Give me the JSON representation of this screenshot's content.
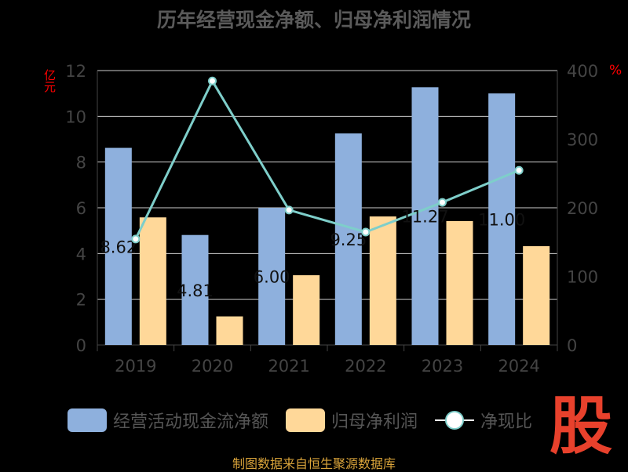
{
  "title": "历年经营现金净额、归母净利润情况",
  "source": "制图数据来自恒生聚源数据库",
  "logo_text": "股",
  "chart_data": {
    "type": "bar",
    "categories": [
      "2019",
      "2020",
      "2021",
      "2022",
      "2023",
      "2024"
    ],
    "series": [
      {
        "name": "经营活动现金流净额",
        "type": "bar",
        "axis": "left",
        "color": "#8eb0dd",
        "values": [
          8.62,
          4.81,
          6.0,
          9.25,
          11.27,
          11.0
        ]
      },
      {
        "name": "归母净利润",
        "type": "bar",
        "axis": "left",
        "color": "#ffd899",
        "values": [
          5.58,
          1.25,
          3.05,
          5.62,
          5.42,
          4.32
        ]
      },
      {
        "name": "净现比",
        "type": "line",
        "axis": "right",
        "color": "#7ececa",
        "values": [
          154.5,
          384.8,
          196.7,
          164.6,
          207.9,
          254.6
        ]
      }
    ],
    "bar_labels": [
      "8.62",
      "4.81",
      "6.00",
      "9.25",
      "11.27",
      "11.00"
    ],
    "y_left": {
      "label": "亿元",
      "ylim": [
        0,
        12
      ],
      "ticks": [
        0,
        2,
        4,
        6,
        8,
        10,
        12
      ]
    },
    "y_right": {
      "label": "%",
      "ylim": [
        0,
        400
      ],
      "ticks": [
        0,
        100,
        200,
        300,
        400
      ]
    },
    "grid": true,
    "legend": "bottom",
    "colors": {
      "axis_text": "#444444",
      "grid": "#cccccc",
      "left_unit": "#ff0000"
    }
  }
}
